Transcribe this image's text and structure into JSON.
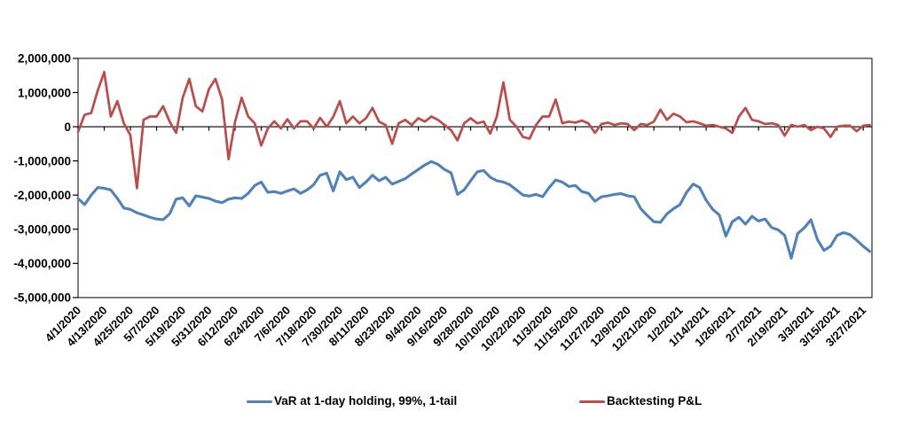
{
  "chart_data": {
    "type": "line",
    "title": "",
    "grid": false,
    "legend_position": "bottom",
    "background": "#ffffff",
    "axis_color": "#000000",
    "y_axis": {
      "min": -5000000,
      "max": 2000000,
      "tick_step": 1000000,
      "tick_labels": [
        "2,000,000",
        "1,000,000",
        "0",
        "-1,000,000",
        "-2,000,000",
        "-3,000,000",
        "-4,000,000",
        "-5,000,000"
      ],
      "tick_values_millions": [
        2,
        1,
        0,
        -1,
        -2,
        -3,
        -4,
        -5
      ]
    },
    "x_axis": {
      "start_date": "4/1/2020",
      "end_date": "3/31/2021",
      "tick_interval_days": 12,
      "span_days": 364,
      "tick_labels": [
        "4/1/2020",
        "4/13/2020",
        "4/25/2020",
        "5/7/2020",
        "5/19/2020",
        "5/31/2020",
        "6/12/2020",
        "6/24/2020",
        "7/6/2020",
        "7/18/2020",
        "7/30/2020",
        "8/11/2020",
        "8/23/2020",
        "9/4/2020",
        "9/16/2020",
        "9/28/2020",
        "10/10/2020",
        "10/22/2020",
        "11/3/2020",
        "11/15/2020",
        "11/27/2020",
        "12/9/2020",
        "12/21/2020",
        "1/2/2021",
        "1/14/2021",
        "1/26/2021",
        "2/7/2021",
        "2/19/2021",
        "3/3/2021",
        "3/15/2021",
        "3/27/2021"
      ]
    },
    "series": [
      {
        "name": "VaR at 1-day holding, 99%, 1-tail",
        "color": "#4F81BD",
        "line_width": 3.1,
        "sample_interval_days": 3,
        "values_millions": [
          -2.1,
          -2.28,
          -2.0,
          -1.78,
          -1.8,
          -1.85,
          -2.1,
          -2.38,
          -2.42,
          -2.52,
          -2.58,
          -2.65,
          -2.7,
          -2.72,
          -2.55,
          -2.12,
          -2.08,
          -2.32,
          -2.02,
          -2.06,
          -2.1,
          -2.18,
          -2.22,
          -2.12,
          -2.08,
          -2.1,
          -1.95,
          -1.72,
          -1.62,
          -1.92,
          -1.9,
          -1.95,
          -1.88,
          -1.82,
          -1.95,
          -1.85,
          -1.7,
          -1.42,
          -1.36,
          -1.88,
          -1.32,
          -1.55,
          -1.48,
          -1.78,
          -1.62,
          -1.42,
          -1.58,
          -1.48,
          -1.68,
          -1.6,
          -1.52,
          -1.38,
          -1.25,
          -1.12,
          -1.02,
          -1.1,
          -1.25,
          -1.35,
          -1.98,
          -1.85,
          -1.58,
          -1.32,
          -1.28,
          -1.48,
          -1.58,
          -1.62,
          -1.7,
          -1.85,
          -2.0,
          -2.03,
          -1.98,
          -2.05,
          -1.78,
          -1.56,
          -1.62,
          -1.75,
          -1.72,
          -1.9,
          -1.95,
          -2.18,
          -2.05,
          -2.02,
          -1.98,
          -1.96,
          -2.02,
          -2.05,
          -2.4,
          -2.6,
          -2.78,
          -2.8,
          -2.55,
          -2.4,
          -2.28,
          -1.92,
          -1.68,
          -1.78,
          -2.15,
          -2.42,
          -2.58,
          -3.2,
          -2.78,
          -2.65,
          -2.85,
          -2.62,
          -2.76,
          -2.7,
          -2.95,
          -3.02,
          -3.18,
          -3.85,
          -3.12,
          -2.96,
          -2.72,
          -3.3,
          -3.62,
          -3.5,
          -3.18,
          -3.1,
          -3.16,
          -3.32,
          -3.5,
          -3.65
        ]
      },
      {
        "name": "Backtesting P&L",
        "color": "#BE4B48",
        "line_width": 2.7,
        "sample_interval_days": 3,
        "values_millions": [
          -0.15,
          0.35,
          0.4,
          1.05,
          1.6,
          0.3,
          0.75,
          0.1,
          -0.25,
          -1.8,
          0.2,
          0.3,
          0.3,
          0.6,
          0.15,
          -0.18,
          0.85,
          1.4,
          0.6,
          0.45,
          1.1,
          1.4,
          0.8,
          -0.95,
          0.15,
          0.85,
          0.3,
          0.1,
          -0.55,
          -0.05,
          0.16,
          -0.05,
          0.22,
          -0.05,
          0.16,
          0.16,
          -0.05,
          0.26,
          0.0,
          0.29,
          0.75,
          0.1,
          0.3,
          0.1,
          0.25,
          0.55,
          0.15,
          0.05,
          -0.5,
          0.1,
          0.2,
          0.05,
          0.25,
          0.15,
          0.3,
          0.2,
          0.05,
          -0.1,
          -0.4,
          0.1,
          0.25,
          0.1,
          0.15,
          -0.2,
          0.3,
          1.3,
          0.2,
          0.0,
          -0.3,
          -0.35,
          0.05,
          0.3,
          0.3,
          0.8,
          0.1,
          0.15,
          0.12,
          0.18,
          0.1,
          -0.18,
          0.08,
          0.12,
          0.05,
          0.1,
          0.08,
          -0.1,
          0.08,
          0.05,
          0.15,
          0.5,
          0.2,
          0.38,
          0.3,
          0.13,
          0.16,
          0.1,
          0.03,
          0.05,
          0.0,
          -0.05,
          -0.18,
          0.3,
          0.55,
          0.2,
          0.16,
          0.08,
          0.1,
          0.05,
          -0.26,
          0.05,
          0.0,
          0.05,
          -0.1,
          0.0,
          -0.05,
          -0.3,
          0.0,
          0.03,
          0.03,
          -0.13,
          0.03,
          0.05
        ]
      }
    ]
  }
}
